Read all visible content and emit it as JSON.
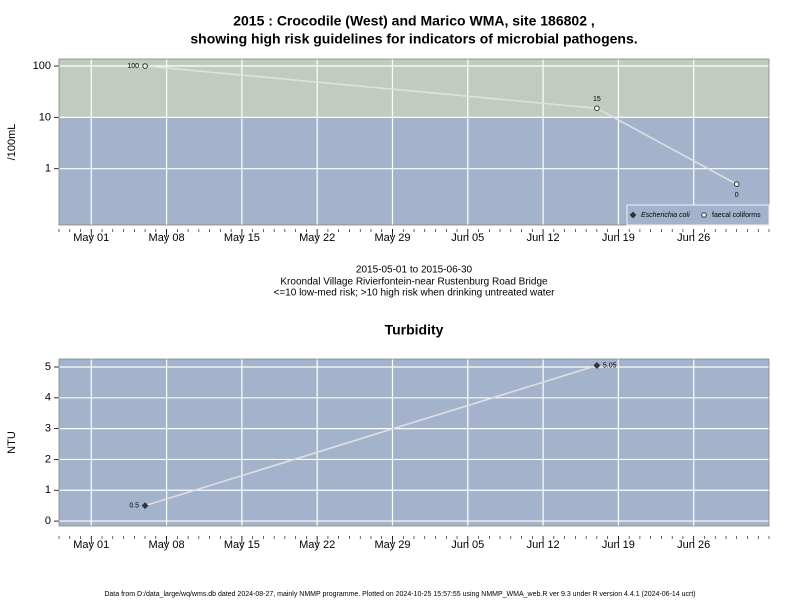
{
  "chart_data": [
    {
      "type": "line",
      "title": [
        "2015 : Crocodile (West) and Marico WMA, site 186802 ,",
        "showing high risk guidelines for indicators of microbial pathogens."
      ],
      "annotations": [
        "2015-05-01 to 2015-06-30",
        "Kroondal Village Rivierfontein-near Rustenburg Road Bridge",
        "<=10 low-med risk; >10 high risk when drinking untreated water"
      ],
      "ylabel": "/100mL",
      "log_scale": true,
      "background": "#a2b3cb",
      "high_risk_band": {
        "from": 10,
        "color": "#c2cbbf"
      },
      "grid": true,
      "legend": "bottom right",
      "x": [
        "2015-05-06",
        "2015-06-17",
        "2015-06-30"
      ],
      "series": [
        {
          "name": "Escherichia coli",
          "color": "#333333",
          "marker": "diamond",
          "values": [
            null,
            null,
            null
          ]
        },
        {
          "name": "faecal coliforms",
          "color": "#333333",
          "marker": "circle",
          "values": [
            100,
            15,
            0.5
          ],
          "value_labels": [
            "100",
            "15",
            "0"
          ]
        }
      ],
      "xlim": [
        "2015-04-28",
        "2015-07-03"
      ],
      "xticks": [
        {
          "value": "2015-05-01",
          "label": "May 01"
        },
        {
          "value": "2015-05-08",
          "label": "May 08"
        },
        {
          "value": "2015-05-15",
          "label": "May 15"
        },
        {
          "value": "2015-05-22",
          "label": "May 22"
        },
        {
          "value": "2015-05-29",
          "label": "May 29"
        },
        {
          "value": "2015-06-05",
          "label": "Jun 05"
        },
        {
          "value": "2015-06-12",
          "label": "Jun 12"
        },
        {
          "value": "2015-06-19",
          "label": "Jun 19"
        },
        {
          "value": "2015-06-26",
          "label": "Jun 26"
        }
      ],
      "ylim": [
        0.08,
        137
      ],
      "yticks": [
        1,
        10,
        100
      ]
    },
    {
      "type": "line",
      "title": [
        "Turbidity"
      ],
      "ylabel": "NTU",
      "log_scale": false,
      "background": "#a2b3cb",
      "grid": true,
      "x": [
        "2015-05-06",
        "2015-06-17"
      ],
      "series": [
        {
          "name": "Turbidity",
          "color": "#333333",
          "marker": "diamond",
          "values": [
            0.5,
            5.05
          ]
        }
      ],
      "xlim": [
        "2015-04-28",
        "2015-07-03"
      ],
      "xticks": [
        {
          "value": "2015-05-01",
          "label": "May 01"
        },
        {
          "value": "2015-05-08",
          "label": "May 08"
        },
        {
          "value": "2015-05-15",
          "label": "May 15"
        },
        {
          "value": "2015-05-22",
          "label": "May 22"
        },
        {
          "value": "2015-05-29",
          "label": "May 29"
        },
        {
          "value": "2015-06-05",
          "label": "Jun 05"
        },
        {
          "value": "2015-06-12",
          "label": "Jun 12"
        },
        {
          "value": "2015-06-19",
          "label": "Jun 19"
        },
        {
          "value": "2015-06-26",
          "label": "Jun 26"
        }
      ],
      "ylim": [
        -0.16,
        5.26
      ],
      "yticks": [
        0,
        1,
        2,
        3,
        4,
        5
      ]
    }
  ],
  "footer": "Data from D:/data_large/wq/wms.db dated 2024-08-27, mainly NMMP programme. Plotted on 2024-10-25 15:57:55 using NMMP_WMA_web.R ver 9.3 under R version 4.4.1 (2024-06-14 ucrt)"
}
